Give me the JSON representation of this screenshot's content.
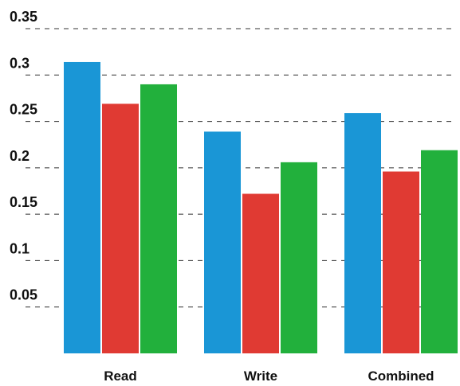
{
  "chart_data": {
    "type": "bar",
    "title": "",
    "xlabel": "",
    "ylabel": "",
    "categories": [
      "Read",
      "Write",
      "Combined"
    ],
    "series": [
      {
        "color": "#1a96d6",
        "values": [
          0.314,
          0.239,
          0.259
        ]
      },
      {
        "color": "#e03a33",
        "values": [
          0.269,
          0.172,
          0.196
        ]
      },
      {
        "color": "#22b03c",
        "values": [
          0.29,
          0.206,
          0.219
        ]
      }
    ],
    "ylim": [
      0,
      0.35
    ],
    "yticks": [
      0.05,
      0.1,
      0.15,
      0.2,
      0.25,
      0.3,
      0.35
    ],
    "ytick_labels": [
      "0.05",
      "0.1",
      "0.15",
      "0.2",
      "0.25",
      "0.3",
      "0.35"
    ],
    "grid": "horizontal-dashed",
    "legend": "none"
  }
}
